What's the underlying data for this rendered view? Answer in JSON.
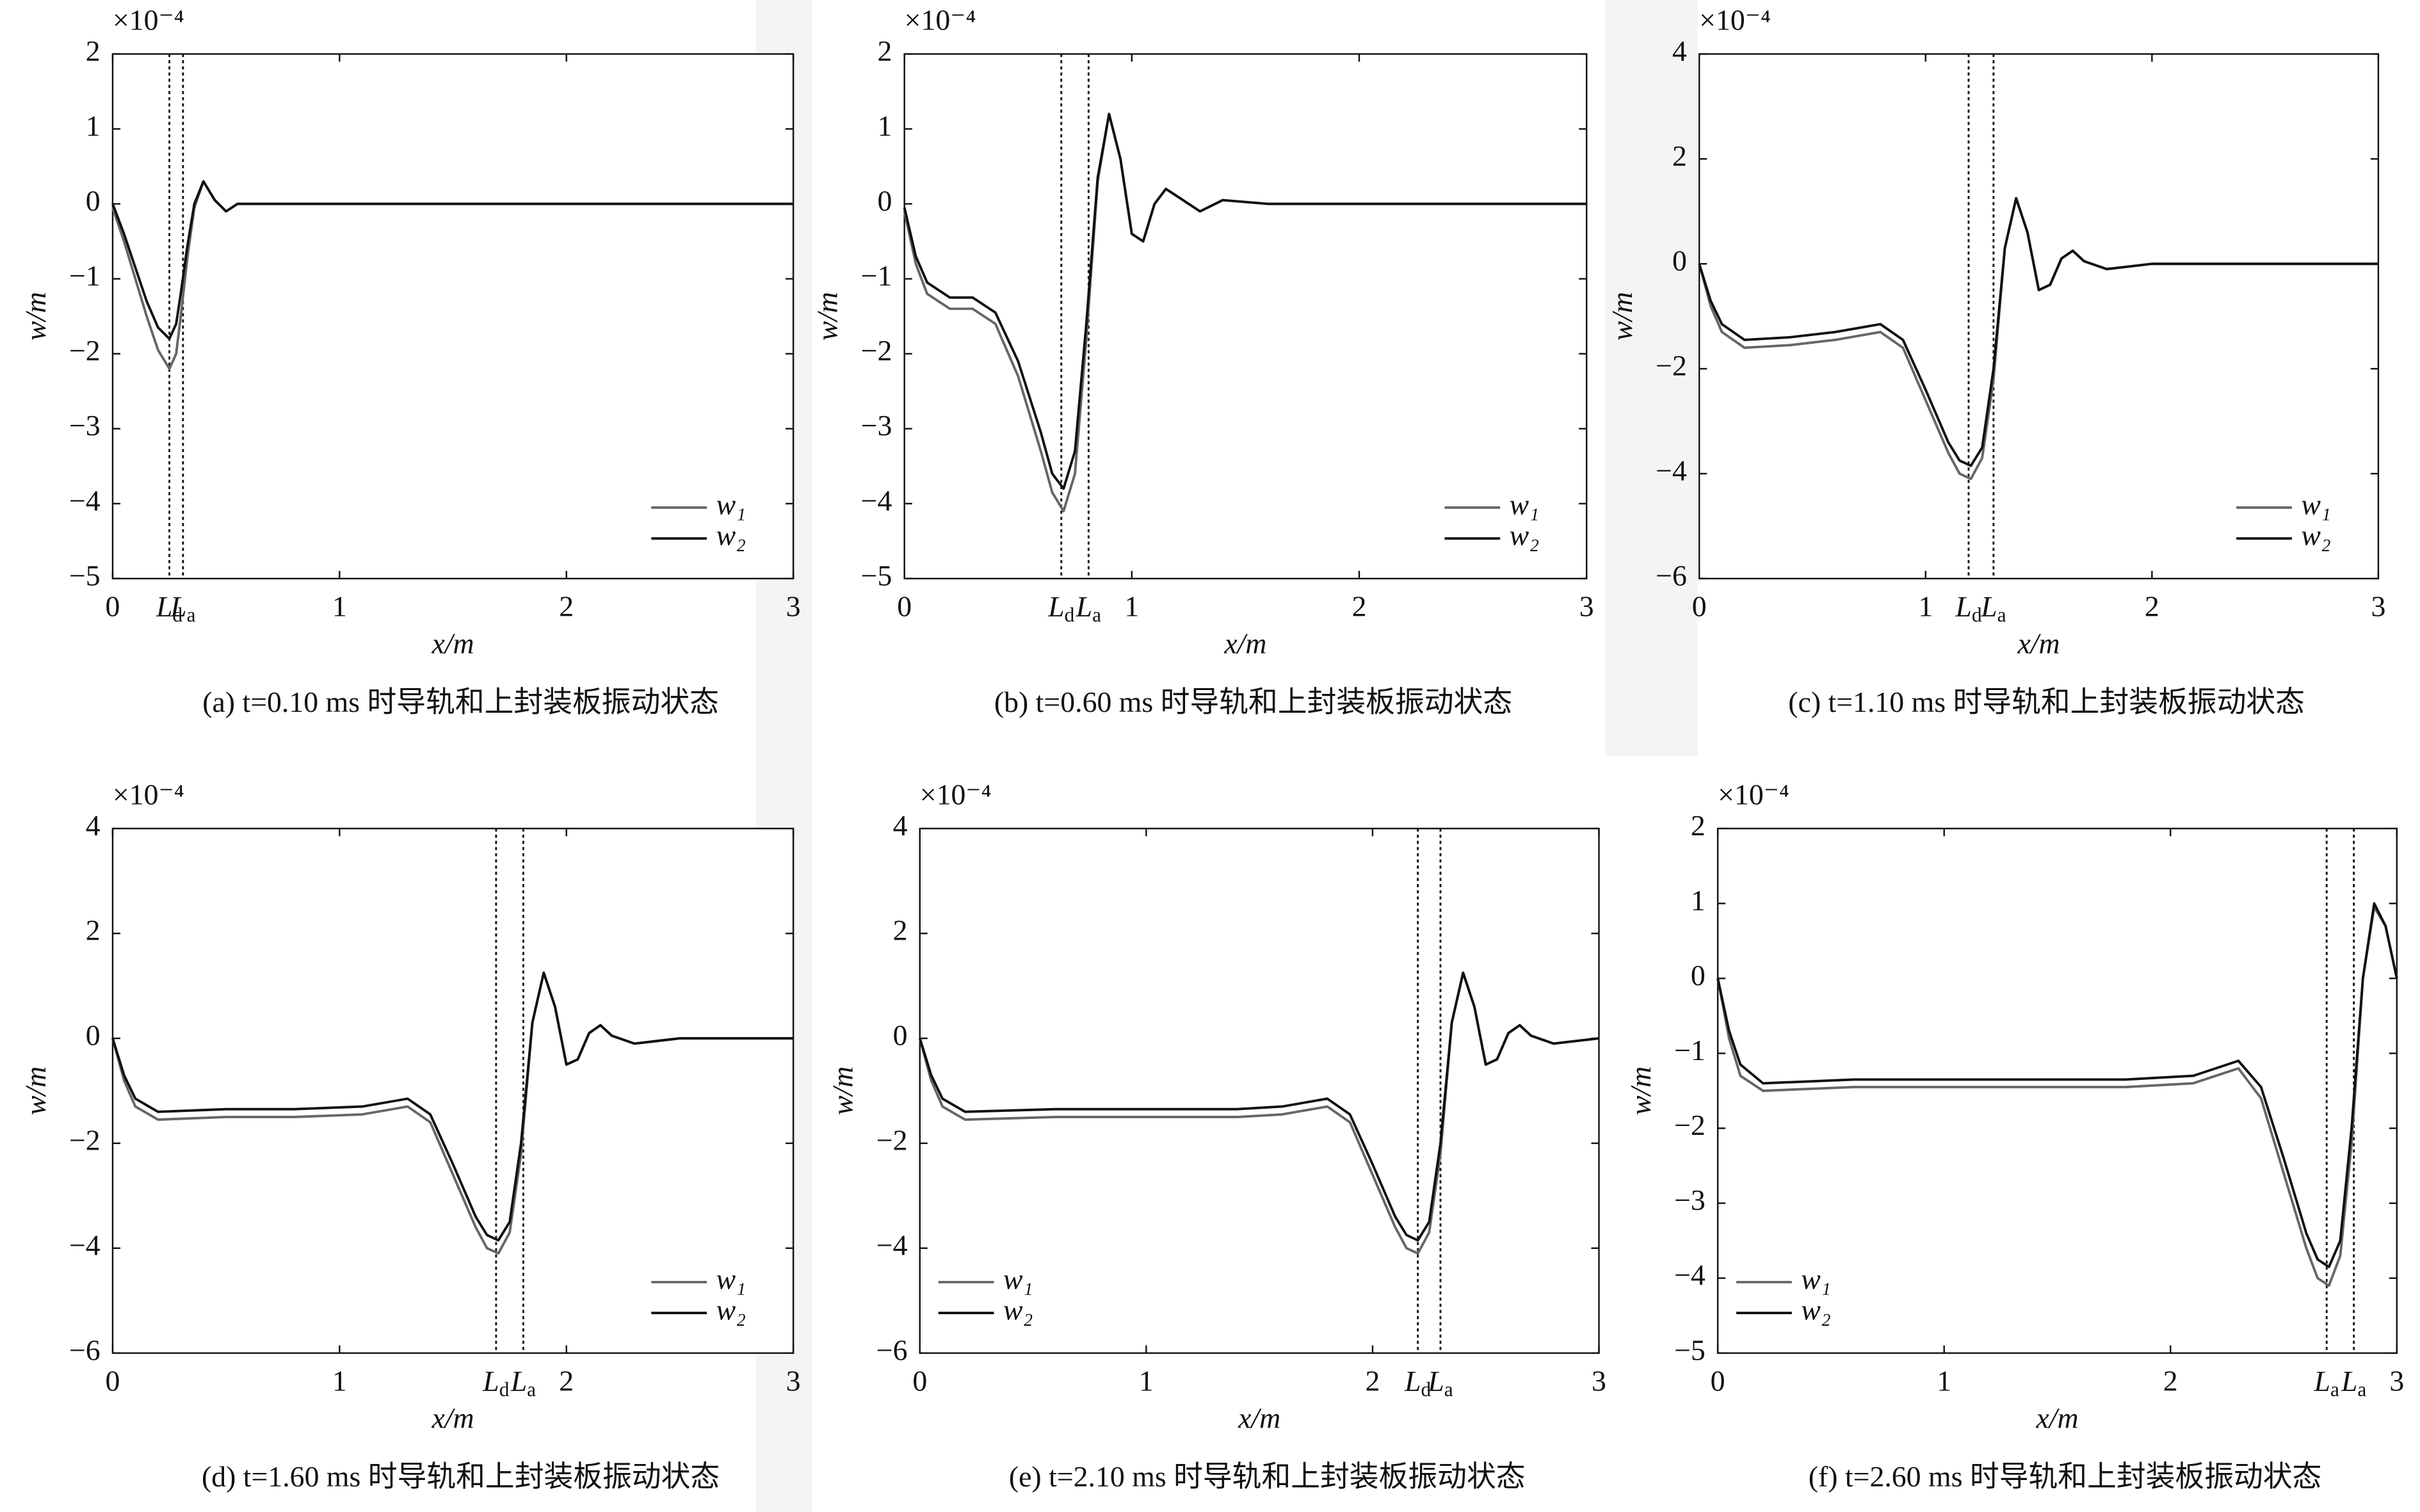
{
  "chart_data": [
    {
      "type": "line",
      "multiplier": "×10⁻⁴",
      "xlabel": "x/m",
      "ylabel": "w/m",
      "caption": "(a) t=0.10 ms 时导轨和上封装板振动状态",
      "xlim": [
        0,
        3
      ],
      "xticks": [
        0,
        1,
        2,
        3
      ],
      "ylim": [
        -5,
        2
      ],
      "yticks": [
        {
          "value": -5,
          "label": "−5"
        },
        {
          "value": -4,
          "label": "−4"
        },
        {
          "value": -3,
          "label": "−3"
        },
        {
          "value": -2,
          "label": "−2"
        },
        {
          "value": -1,
          "label": "−1"
        },
        0,
        1,
        2
      ],
      "legend": "lower right",
      "vlines": [
        {
          "x": 0.25,
          "label": "L",
          "sub": "d"
        },
        {
          "x": 0.31,
          "label": "L",
          "sub": "a"
        }
      ],
      "x": [
        0,
        0.05,
        0.1,
        0.15,
        0.2,
        0.25,
        0.28,
        0.3,
        0.33,
        0.36,
        0.4,
        0.45,
        0.5,
        0.55,
        0.6,
        1,
        2,
        3
      ],
      "series": [
        {
          "name": "w₁",
          "color": "#666666",
          "values": [
            -0.05,
            -0.5,
            -1.0,
            -1.5,
            -1.95,
            -2.2,
            -2.0,
            -1.5,
            -0.7,
            -0.05,
            0.3,
            0.05,
            -0.1,
            0,
            0,
            0,
            0,
            0
          ]
        },
        {
          "name": "w₂",
          "color": "#111111",
          "values": [
            0,
            -0.4,
            -0.85,
            -1.3,
            -1.65,
            -1.8,
            -1.6,
            -1.2,
            -0.55,
            0,
            0.3,
            0.05,
            -0.1,
            0,
            0,
            0,
            0,
            0
          ]
        }
      ]
    },
    {
      "type": "line",
      "multiplier": "×10⁻⁴",
      "xlabel": "x/m",
      "ylabel": "w/m",
      "caption": "(b) t=0.60 ms 时导轨和上封装板振动状态",
      "xlim": [
        0,
        3
      ],
      "xticks": [
        0,
        1,
        2,
        3
      ],
      "ylim": [
        -5,
        2
      ],
      "yticks": [
        {
          "value": -5,
          "label": "−5"
        },
        {
          "value": -4,
          "label": "−4"
        },
        {
          "value": -3,
          "label": "−3"
        },
        {
          "value": -2,
          "label": "−2"
        },
        {
          "value": -1,
          "label": "−1"
        },
        0,
        1,
        2
      ],
      "legend": "lower right",
      "vlines": [
        {
          "x": 0.69,
          "label": "L",
          "sub": "d"
        },
        {
          "x": 0.81,
          "label": "L",
          "sub": "a"
        }
      ],
      "x": [
        0,
        0.05,
        0.1,
        0.2,
        0.3,
        0.4,
        0.5,
        0.6,
        0.65,
        0.7,
        0.75,
        0.8,
        0.85,
        0.9,
        0.95,
        1.0,
        1.05,
        1.1,
        1.15,
        1.2,
        1.3,
        1.4,
        1.6,
        2,
        2.5,
        3
      ],
      "series": [
        {
          "name": "w₁",
          "color": "#666666",
          "values": [
            -0.1,
            -0.8,
            -1.2,
            -1.4,
            -1.4,
            -1.6,
            -2.3,
            -3.3,
            -3.85,
            -4.1,
            -3.6,
            -1.8,
            0.3,
            1.2,
            0.6,
            -0.4,
            -0.5,
            0,
            0.2,
            0.1,
            -0.1,
            0.05,
            0,
            0,
            0,
            0
          ]
        },
        {
          "name": "w₂",
          "color": "#111111",
          "values": [
            -0.05,
            -0.7,
            -1.05,
            -1.25,
            -1.25,
            -1.45,
            -2.1,
            -3.05,
            -3.6,
            -3.8,
            -3.3,
            -1.6,
            0.35,
            1.2,
            0.6,
            -0.4,
            -0.5,
            0,
            0.2,
            0.1,
            -0.1,
            0.05,
            0,
            0,
            0,
            0
          ]
        }
      ]
    },
    {
      "type": "line",
      "multiplier": "×10⁻⁴",
      "xlabel": "x/m",
      "ylabel": "w/m",
      "caption": "(c) t=1.10 ms 时导轨和上封装板振动状态",
      "xlim": [
        0,
        3
      ],
      "xticks": [
        0,
        1,
        2,
        3
      ],
      "ylim": [
        -6,
        4
      ],
      "yticks": [
        {
          "value": -6,
          "label": "−6"
        },
        {
          "value": -4,
          "label": "−4"
        },
        {
          "value": -2,
          "label": "−2"
        },
        0,
        2,
        4
      ],
      "legend": "lower right",
      "vlines": [
        {
          "x": 1.19,
          "label": "L",
          "sub": "d"
        },
        {
          "x": 1.3,
          "label": "L",
          "sub": "a"
        }
      ],
      "x": [
        0,
        0.05,
        0.1,
        0.2,
        0.4,
        0.6,
        0.8,
        0.9,
        1.0,
        1.1,
        1.15,
        1.2,
        1.25,
        1.3,
        1.35,
        1.4,
        1.45,
        1.5,
        1.55,
        1.6,
        1.65,
        1.7,
        1.8,
        2,
        2.5,
        3
      ],
      "series": [
        {
          "name": "w₁",
          "color": "#666666",
          "values": [
            0,
            -0.8,
            -1.3,
            -1.6,
            -1.55,
            -1.45,
            -1.3,
            -1.6,
            -2.6,
            -3.6,
            -4.0,
            -4.1,
            -3.7,
            -2.2,
            0.3,
            1.25,
            0.6,
            -0.5,
            -0.4,
            0.1,
            0.25,
            0.05,
            -0.1,
            0,
            0,
            0
          ]
        },
        {
          "name": "w₂",
          "color": "#111111",
          "values": [
            0,
            -0.7,
            -1.15,
            -1.45,
            -1.4,
            -1.3,
            -1.15,
            -1.45,
            -2.4,
            -3.4,
            -3.75,
            -3.85,
            -3.5,
            -2.0,
            0.3,
            1.25,
            0.6,
            -0.5,
            -0.4,
            0.1,
            0.25,
            0.05,
            -0.1,
            0,
            0,
            0
          ]
        }
      ]
    },
    {
      "type": "line",
      "multiplier": "×10⁻⁴",
      "xlabel": "x/m",
      "ylabel": "w/m",
      "caption": "(d) t=1.60 ms 时导轨和上封装板振动状态",
      "xlim": [
        0,
        3
      ],
      "xticks": [
        0,
        1,
        2,
        3
      ],
      "ylim": [
        -6,
        4
      ],
      "yticks": [
        {
          "value": -6,
          "label": "−6"
        },
        {
          "value": -4,
          "label": "−4"
        },
        {
          "value": -2,
          "label": "−2"
        },
        0,
        2,
        4
      ],
      "legend": "lower right",
      "vlines": [
        {
          "x": 1.69,
          "label": "L",
          "sub": "d"
        },
        {
          "x": 1.81,
          "label": "L",
          "sub": "a"
        }
      ],
      "x": [
        0,
        0.05,
        0.1,
        0.2,
        0.5,
        0.8,
        1.1,
        1.3,
        1.4,
        1.5,
        1.6,
        1.65,
        1.7,
        1.75,
        1.8,
        1.85,
        1.9,
        1.95,
        2.0,
        2.05,
        2.1,
        2.15,
        2.2,
        2.3,
        2.5,
        3
      ],
      "series": [
        {
          "name": "w₁",
          "color": "#666666",
          "values": [
            0,
            -0.8,
            -1.3,
            -1.55,
            -1.5,
            -1.5,
            -1.45,
            -1.3,
            -1.6,
            -2.6,
            -3.6,
            -4.0,
            -4.1,
            -3.7,
            -2.2,
            0.3,
            1.25,
            0.6,
            -0.5,
            -0.4,
            0.1,
            0.25,
            0.05,
            -0.1,
            0,
            0
          ]
        },
        {
          "name": "w₂",
          "color": "#111111",
          "values": [
            0,
            -0.7,
            -1.15,
            -1.4,
            -1.35,
            -1.35,
            -1.3,
            -1.15,
            -1.45,
            -2.4,
            -3.4,
            -3.75,
            -3.85,
            -3.5,
            -2.0,
            0.3,
            1.25,
            0.6,
            -0.5,
            -0.4,
            0.1,
            0.25,
            0.05,
            -0.1,
            0,
            0
          ]
        }
      ]
    },
    {
      "type": "line",
      "multiplier": "×10⁻⁴",
      "xlabel": "x/m",
      "ylabel": "w/m",
      "caption": "(e) t=2.10 ms 时导轨和上封装板振动状态",
      "xlim": [
        0,
        3
      ],
      "xticks": [
        0,
        1,
        2,
        3
      ],
      "ylim": [
        -6,
        4
      ],
      "yticks": [
        {
          "value": -6,
          "label": "−6"
        },
        {
          "value": -4,
          "label": "−4"
        },
        {
          "value": -2,
          "label": "−2"
        },
        0,
        2,
        4
      ],
      "legend": "lower left",
      "vlines": [
        {
          "x": 2.2,
          "label": "L",
          "sub": "d"
        },
        {
          "x": 2.3,
          "label": "L",
          "sub": "a"
        }
      ],
      "x": [
        0,
        0.05,
        0.1,
        0.2,
        0.6,
        1.0,
        1.4,
        1.6,
        1.8,
        1.9,
        2.0,
        2.1,
        2.15,
        2.2,
        2.25,
        2.3,
        2.35,
        2.4,
        2.45,
        2.5,
        2.55,
        2.6,
        2.65,
        2.7,
        2.8,
        3
      ],
      "series": [
        {
          "name": "w₁",
          "color": "#666666",
          "values": [
            0,
            -0.8,
            -1.3,
            -1.55,
            -1.5,
            -1.5,
            -1.5,
            -1.45,
            -1.3,
            -1.6,
            -2.6,
            -3.6,
            -4.0,
            -4.1,
            -3.7,
            -2.2,
            0.3,
            1.25,
            0.6,
            -0.5,
            -0.4,
            0.1,
            0.25,
            0.05,
            -0.1,
            0
          ]
        },
        {
          "name": "w₂",
          "color": "#111111",
          "values": [
            0,
            -0.7,
            -1.15,
            -1.4,
            -1.35,
            -1.35,
            -1.35,
            -1.3,
            -1.15,
            -1.45,
            -2.4,
            -3.4,
            -3.75,
            -3.85,
            -3.5,
            -2.0,
            0.3,
            1.25,
            0.6,
            -0.5,
            -0.4,
            0.1,
            0.25,
            0.05,
            -0.1,
            0
          ]
        }
      ]
    },
    {
      "type": "line",
      "multiplier": "×10⁻⁴",
      "xlabel": "x/m",
      "ylabel": "w/m",
      "caption": "(f) t=2.60 ms 时导轨和上封装板振动状态",
      "xlim": [
        0,
        3
      ],
      "xticks": [
        0,
        1,
        2,
        3
      ],
      "ylim": [
        -5,
        2
      ],
      "yticks": [
        {
          "value": -5,
          "label": "−5"
        },
        {
          "value": -4,
          "label": "−4"
        },
        {
          "value": -3,
          "label": "−3"
        },
        {
          "value": -2,
          "label": "−2"
        },
        {
          "value": -1,
          "label": "−1"
        },
        0,
        1,
        2
      ],
      "legend": "lower left",
      "vlines": [
        {
          "x": 2.69,
          "label": "L",
          "sub": "a"
        },
        {
          "x": 2.81,
          "label": "L",
          "sub": "a"
        }
      ],
      "x": [
        0,
        0.05,
        0.1,
        0.2,
        0.6,
        1.0,
        1.4,
        1.8,
        2.1,
        2.2,
        2.3,
        2.4,
        2.5,
        2.6,
        2.65,
        2.7,
        2.75,
        2.8,
        2.85,
        2.9,
        2.95,
        3
      ],
      "series": [
        {
          "name": "w₁",
          "color": "#666666",
          "values": [
            0,
            -0.8,
            -1.3,
            -1.5,
            -1.45,
            -1.45,
            -1.45,
            -1.45,
            -1.4,
            -1.3,
            -1.2,
            -1.6,
            -2.6,
            -3.6,
            -4.0,
            -4.1,
            -3.7,
            -2.2,
            0,
            0.95,
            0.7,
            0
          ]
        },
        {
          "name": "w₂",
          "color": "#111111",
          "values": [
            0,
            -0.7,
            -1.15,
            -1.4,
            -1.35,
            -1.35,
            -1.35,
            -1.35,
            -1.3,
            -1.2,
            -1.1,
            -1.45,
            -2.4,
            -3.4,
            -3.75,
            -3.85,
            -3.5,
            -2.0,
            0,
            1.0,
            0.7,
            0
          ]
        }
      ]
    }
  ]
}
